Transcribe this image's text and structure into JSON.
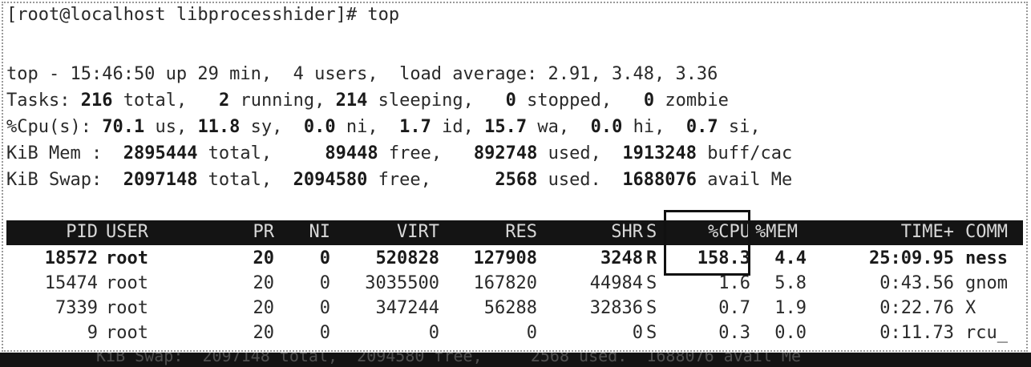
{
  "prompt_line": "[root@localhost libprocesshider]# top",
  "summary": {
    "top_line": "top - 15:46:50 up 29 min,  4 users,  load average: 2.91, 3.48, 3.36",
    "tasks": {
      "label": "Tasks:",
      "total": "216",
      "total_label": " total,",
      "running": "2",
      "running_label": " running,",
      "sleeping": "214",
      "sleeping_label": " sleeping,",
      "stopped": "0",
      "stopped_label": " stopped,",
      "zombie": "0",
      "zombie_label": " zombie"
    },
    "cpu": {
      "label": "%Cpu(s):",
      "us": "70.1",
      "us_label": " us,",
      "sy": "11.8",
      "sy_label": " sy,",
      "ni": "0.0",
      "ni_label": " ni,",
      "id": "1.7",
      "id_label": " id,",
      "wa": "15.7",
      "wa_label": " wa,",
      "hi": "0.0",
      "hi_label": " hi,",
      "si": "0.7",
      "si_label": " si,"
    },
    "mem": {
      "label": "KiB Mem :",
      "total": "2895444",
      "total_label": " total,",
      "free": "89448",
      "free_label": " free,",
      "used": "892748",
      "used_label": " used,",
      "buff": "1913248",
      "buff_label": " buff/cac"
    },
    "swap": {
      "label": "KiB Swap:",
      "total": "2097148",
      "total_label": " total,",
      "free": "2094580",
      "free_label": " free,",
      "used": "2568",
      "used_label": " used.",
      "avail": "1688076",
      "avail_label": " avail Me"
    }
  },
  "table": {
    "headers": {
      "pid": "PID",
      "user": "USER",
      "pr": "PR",
      "ni": "NI",
      "virt": "VIRT",
      "res": "RES",
      "shr": "SHR",
      "s": "S",
      "cpu": "%CPU",
      "mem": "%MEM",
      "time": "TIME+",
      "command": "COMM"
    },
    "rows": [
      {
        "pid": "18572",
        "user": "root",
        "pr": "20",
        "ni": "0",
        "virt": "520828",
        "res": "127908",
        "shr": "3248",
        "s": "R",
        "cpu": "158.3",
        "mem": "4.4",
        "time": "25:09.95",
        "command": "ness"
      },
      {
        "pid": "15474",
        "user": "root",
        "pr": "20",
        "ni": "0",
        "virt": "3035500",
        "res": "167820",
        "shr": "44984",
        "s": "S",
        "cpu": "1.6",
        "mem": "5.8",
        "time": "0:43.56",
        "command": "gnom"
      },
      {
        "pid": "7339",
        "user": "root",
        "pr": "20",
        "ni": "0",
        "virt": "347244",
        "res": "56288",
        "shr": "32836",
        "s": "S",
        "cpu": "0.7",
        "mem": "1.9",
        "time": "0:22.76",
        "command": "X"
      },
      {
        "pid": "9",
        "user": "root",
        "pr": "20",
        "ni": "0",
        "virt": "0",
        "res": "0",
        "shr": "0",
        "s": "S",
        "cpu": "0.3",
        "mem": "0.0",
        "time": "0:11.73",
        "command": "rcu_"
      }
    ]
  },
  "bottom_fragment": "KiB Swap:  2097148 total,  2094580 free,     2568 used.  1688076 avail Me"
}
